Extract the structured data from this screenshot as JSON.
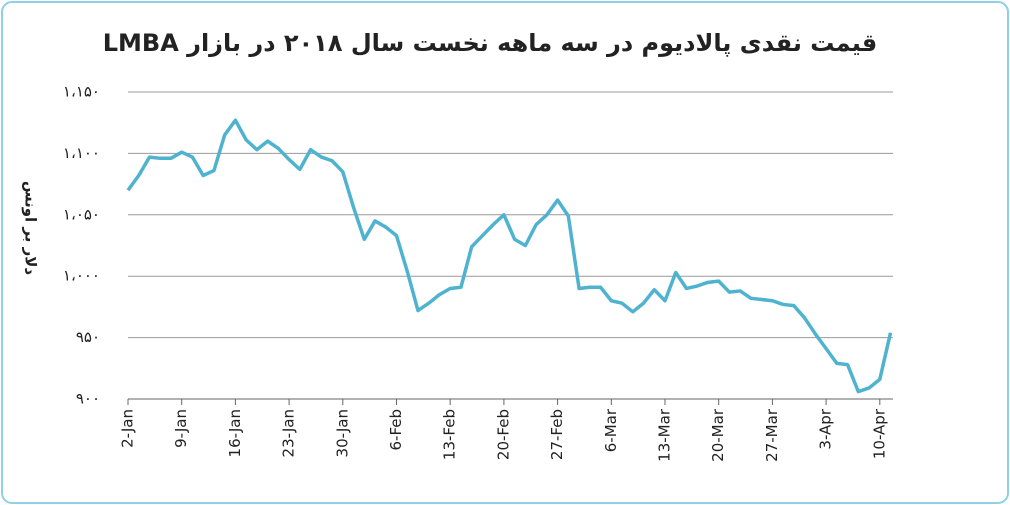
{
  "chart_data": {
    "type": "line",
    "title": "قیمت نقدی پالادیوم در سه ماهه نخست سال ۲۰۱۸ در بازار LMBA",
    "y_label": "دلار بر اونس",
    "categories": [
      "2-Jan",
      null,
      null,
      null,
      null,
      "9-Jan",
      null,
      null,
      null,
      null,
      "16-Jan",
      null,
      null,
      null,
      null,
      "23-Jan",
      null,
      null,
      null,
      null,
      "30-Jan",
      null,
      null,
      null,
      null,
      "6-Feb",
      null,
      null,
      null,
      null,
      "13-Feb",
      null,
      null,
      null,
      null,
      "20-Feb",
      null,
      null,
      null,
      null,
      "27-Feb",
      null,
      null,
      null,
      null,
      "6-Mar",
      null,
      null,
      null,
      null,
      "13-Mar",
      null,
      null,
      null,
      null,
      "20-Mar",
      null,
      null,
      null,
      null,
      "27-Mar",
      null,
      null,
      null,
      null,
      "3-Apr",
      null,
      null,
      null,
      null,
      "10-Apr",
      null
    ],
    "series": [
      {
        "color": "#4fb3cf",
        "values": [
          1070,
          1082,
          1097,
          1096,
          1096,
          1101,
          1097,
          1082,
          1086,
          1115,
          1127,
          1111,
          1103,
          1110,
          1104,
          1095,
          1087,
          1103,
          1097,
          1094,
          1085,
          1056,
          1030,
          1045,
          1040,
          1033,
          1004,
          972,
          978,
          985,
          990,
          991,
          1024,
          1033,
          1042,
          1050,
          1030,
          1025,
          1042,
          1050,
          1062,
          1049,
          990,
          991,
          991,
          980,
          978,
          971,
          978,
          989,
          980,
          1003,
          990,
          992,
          995,
          996,
          987,
          988,
          982,
          981,
          980,
          977,
          976,
          966,
          953,
          941,
          929,
          928,
          906,
          909,
          916,
          954
        ]
      }
    ],
    "ylim": [
      900,
      1150
    ],
    "yticks": [
      {
        "value": 900,
        "label": "۹۰۰"
      },
      {
        "value": 950,
        "label": "۹۵۰"
      },
      {
        "value": 1000,
        "label": "۱،۰۰۰"
      },
      {
        "value": 1050,
        "label": "۱،۰۵۰"
      },
      {
        "value": 1100,
        "label": "۱،۱۰۰"
      },
      {
        "value": 1150,
        "label": "۱،۱۵۰"
      }
    ],
    "grid": true
  }
}
